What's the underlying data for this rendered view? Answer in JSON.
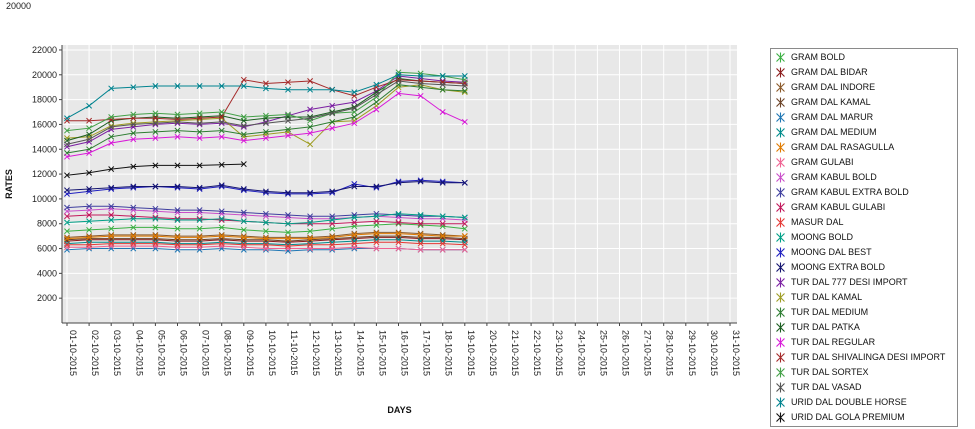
{
  "page": {
    "top_fragment": "20000"
  },
  "chart_data": {
    "type": "line",
    "title": "",
    "xlabel": "DAYS",
    "ylabel": "RATES",
    "ylim": [
      0,
      22400
    ],
    "y_ticks": [
      2000,
      4000,
      6000,
      8000,
      10000,
      12000,
      14000,
      16000,
      18000,
      20000,
      22000
    ],
    "grid": true,
    "plot_bg": "#e8e8e8",
    "grid_color": "#ffffff",
    "legend_position": "right",
    "x_tick_rotation": 90,
    "x": [
      "01-10-2015",
      "02-10-2015",
      "03-10-2015",
      "04-10-2015",
      "05-10-2015",
      "06-10-2015",
      "07-10-2015",
      "08-10-2015",
      "09-10-2015",
      "10-10-2015",
      "11-10-2015",
      "12-10-2015",
      "13-10-2015",
      "14-10-2015",
      "15-10-2015",
      "16-10-2015",
      "17-10-2015",
      "18-10-2015",
      "19-10-2015",
      "20-10-2015",
      "21-10-2015",
      "22-10-2015",
      "23-10-2015",
      "24-10-2015",
      "25-10-2015",
      "26-10-2015",
      "27-10-2015",
      "28-10-2015",
      "29-10-2015",
      "30-10-2015",
      "31-10-2015"
    ],
    "series": [
      {
        "name": "GRAM BOLD",
        "color": "#3cb044",
        "values": [
          7400,
          7500,
          7600,
          7700,
          7700,
          7600,
          7600,
          7700,
          7500,
          7400,
          7300,
          7400,
          7600,
          7800,
          7900,
          8000,
          7900,
          7800,
          7600
        ]
      },
      {
        "name": "GRAM DAL BIDAR",
        "color": "#8b1a1a",
        "values": [
          6600,
          6700,
          6700,
          6700,
          6700,
          6600,
          6600,
          6700,
          6600,
          6600,
          6500,
          6600,
          6700,
          6800,
          6900,
          6900,
          6800,
          6800,
          6700
        ]
      },
      {
        "name": "GRAM DAL INDORE",
        "color": "#8b5a2b",
        "values": [
          6900,
          7000,
          7100,
          7100,
          7100,
          7000,
          7000,
          7100,
          7000,
          6900,
          6900,
          6900,
          7000,
          7200,
          7300,
          7300,
          7200,
          7100,
          7000
        ]
      },
      {
        "name": "GRAM DAL KAMAL",
        "color": "#6b4226",
        "values": [
          6700,
          6800,
          6800,
          6800,
          6800,
          6700,
          6700,
          6800,
          6700,
          6700,
          6600,
          6700,
          6800,
          6900,
          7000,
          7000,
          6900,
          6900,
          6800
        ]
      },
      {
        "name": "GRAM DAL MARUR",
        "color": "#1f77b4",
        "values": [
          5900,
          6000,
          6000,
          6000,
          6000,
          5900,
          5900,
          6000,
          5900,
          5900,
          5800,
          5900,
          5900,
          6000,
          6000,
          6000,
          5900,
          5900,
          5900
        ]
      },
      {
        "name": "GRAM DAL MEDIUM",
        "color": "#008b8b",
        "values": [
          6400,
          6500,
          6500,
          6500,
          6500,
          6400,
          6400,
          6500,
          6400,
          6400,
          6300,
          6400,
          6500,
          6600,
          6700,
          6700,
          6600,
          6600,
          6500
        ]
      },
      {
        "name": "GRAM DAL RASAGULLA",
        "color": "#e07b00",
        "values": [
          6800,
          6900,
          7000,
          7000,
          7000,
          6900,
          6900,
          7000,
          6900,
          6800,
          6800,
          6800,
          6900,
          7100,
          7200,
          7200,
          7100,
          7000,
          7000
        ]
      },
      {
        "name": "GRAM GULABI",
        "color": "#f06292",
        "values": [
          6100,
          6100,
          6200,
          6200,
          6200,
          6100,
          6100,
          6200,
          6100,
          6000,
          6000,
          6000,
          6000,
          6100,
          6000,
          6000,
          5900,
          5900,
          5900
        ]
      },
      {
        "name": "GRAM KABUL BOLD",
        "color": "#c94fc9",
        "values": [
          9000,
          9100,
          9200,
          9100,
          9000,
          8900,
          8900,
          8800,
          8700,
          8600,
          8500,
          8400,
          8400,
          8500,
          8600,
          8500,
          8400,
          8400,
          8300
        ]
      },
      {
        "name": "GRAM KABUL EXTRA BOLD",
        "color": "#3f3f9f",
        "values": [
          9300,
          9400,
          9400,
          9300,
          9200,
          9100,
          9100,
          9000,
          8900,
          8800,
          8700,
          8600,
          8600,
          8700,
          8800,
          8700,
          8600,
          8600,
          8500
        ]
      },
      {
        "name": "GRAM KABUL GULABI",
        "color": "#c2185b",
        "values": [
          8600,
          8700,
          8700,
          8600,
          8500,
          8400,
          8400,
          8300,
          8200,
          8100,
          8000,
          8000,
          8000,
          8100,
          8200,
          8100,
          8000,
          8000,
          8000
        ]
      },
      {
        "name": "MASUR DAL",
        "color": "#e53935",
        "values": [
          6300,
          6300,
          6400,
          6400,
          6400,
          6300,
          6300,
          6400,
          6300,
          6300,
          6200,
          6300,
          6300,
          6400,
          6500,
          6500,
          6400,
          6400,
          6300
        ]
      },
      {
        "name": "MOONG BOLD",
        "color": "#00a087",
        "values": [
          8100,
          8200,
          8300,
          8400,
          8400,
          8300,
          8300,
          8400,
          8200,
          8100,
          8000,
          8100,
          8300,
          8500,
          8600,
          8800,
          8700,
          8600,
          8500
        ]
      },
      {
        "name": "MOONG DAL BEST",
        "color": "#2020c0",
        "values": [
          10400,
          10600,
          10800,
          10900,
          11000,
          10900,
          10800,
          11000,
          10700,
          10500,
          10400,
          10400,
          10500,
          11200,
          10900,
          11400,
          11500,
          11400,
          11300
        ]
      },
      {
        "name": "MOONG EXTRA BOLD",
        "color": "#151570",
        "values": [
          10700,
          10800,
          10900,
          11000,
          11000,
          11000,
          10900,
          11100,
          10800,
          10600,
          10500,
          10500,
          10600,
          11000,
          11000,
          11300,
          11400,
          11300,
          11300
        ]
      },
      {
        "name": "TUR DAL  777 DESI IMPORT",
        "color": "#7b1fa2",
        "values": [
          14200,
          14600,
          15600,
          15800,
          16000,
          16100,
          16000,
          16100,
          15800,
          16200,
          16700,
          17200,
          17500,
          17800,
          18700,
          19900,
          19700,
          19500,
          19400
        ]
      },
      {
        "name": "TUR DAL KAMAL",
        "color": "#9e9d24",
        "values": [
          14900,
          15000,
          15900,
          16100,
          16200,
          16300,
          16400,
          16500,
          15000,
          15200,
          15400,
          14400,
          16200,
          16300,
          17500,
          19000,
          19200,
          18800,
          18600
        ]
      },
      {
        "name": "TUR DAL MEDIUM",
        "color": "#2e7d32",
        "values": [
          13700,
          14000,
          15000,
          15300,
          15400,
          15500,
          15400,
          15500,
          15200,
          15400,
          15600,
          15800,
          16200,
          16600,
          17800,
          19200,
          19000,
          18800,
          18700
        ]
      },
      {
        "name": "TUR DAL PATKA",
        "color": "#1b5e20",
        "values": [
          14700,
          15200,
          16300,
          16500,
          16600,
          16500,
          16600,
          16700,
          16300,
          16500,
          16600,
          16600,
          17000,
          17400,
          18600,
          19700,
          19500,
          19400,
          19300
        ]
      },
      {
        "name": "TUR DAL REGULAR",
        "color": "#d81bd8",
        "values": [
          13400,
          13700,
          14500,
          14800,
          14900,
          15000,
          14900,
          15000,
          14700,
          14900,
          15100,
          15300,
          15700,
          16100,
          17200,
          18500,
          18300,
          17000,
          16200
        ]
      },
      {
        "name": "TUR DAL SHIVALINGA DESI IMPORT",
        "color": "#a52a2a",
        "values": [
          16300,
          16300,
          16400,
          16500,
          16500,
          16400,
          16500,
          16600,
          19600,
          19300,
          19400,
          19500,
          18800,
          18300,
          19000,
          19600,
          19500,
          19400,
          19300
        ]
      },
      {
        "name": "TUR DAL SORTEX",
        "color": "#43a047",
        "values": [
          15500,
          15700,
          16600,
          16800,
          16900,
          16800,
          16900,
          17000,
          16600,
          16700,
          16800,
          16300,
          16900,
          17000,
          18200,
          20200,
          20100,
          19900,
          19600
        ]
      },
      {
        "name": "TUR DAL VASAD",
        "color": "#555555",
        "values": [
          14400,
          14800,
          15800,
          16000,
          16100,
          16200,
          16100,
          16200,
          15900,
          16100,
          16300,
          16500,
          16900,
          17300,
          18400,
          19500,
          19300,
          19200,
          19100
        ]
      },
      {
        "name": "URID DAL DOUBLE HORSE",
        "color": "#00838f",
        "values": [
          16500,
          17500,
          18900,
          19000,
          19100,
          19100,
          19100,
          19100,
          19100,
          18900,
          18800,
          18800,
          18800,
          18600,
          19200,
          20000,
          19900,
          19900,
          19900
        ]
      },
      {
        "name": "URID DAL GOLA PREMIUM",
        "color": "#111111",
        "values": [
          11900,
          12100,
          12400,
          12600,
          12700,
          12700,
          12700,
          12750,
          12800
        ]
      }
    ]
  }
}
